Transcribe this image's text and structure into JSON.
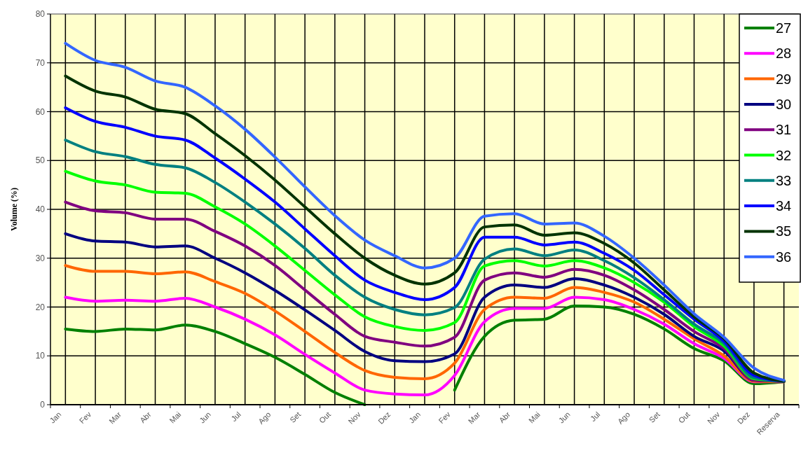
{
  "chart_data": {
    "type": "line",
    "ylabel": "Volume (%)",
    "categories": [
      "Jan",
      "Fev",
      "Mar",
      "Abr",
      "Mai",
      "Jun",
      "Jul",
      "Ago",
      "Set",
      "Out",
      "Nov",
      "Dez",
      "Jan",
      "Fev",
      "Mar",
      "Abr",
      "Mai",
      "Jun",
      "Jul",
      "Ago",
      "Set",
      "Out",
      "Nov",
      "Dez",
      "Reserva"
    ],
    "ylim": [
      0,
      80
    ],
    "yticks": [
      0,
      10,
      20,
      30,
      40,
      50,
      60,
      70,
      80
    ],
    "grid": true,
    "legend": "top right",
    "marker": "none",
    "line_style": "solid",
    "series": [
      {
        "name": "27",
        "color": "#008000",
        "values": [
          15.5,
          15,
          15.5,
          15.3,
          16.3,
          15,
          12.5,
          9.7,
          6.2,
          2.5,
          0,
          null,
          null,
          3,
          14,
          17.3,
          17.5,
          20.2,
          20,
          18.5,
          15.5,
          11.5,
          9,
          4.3,
          4.7
        ]
      },
      {
        "name": "28",
        "color": "#ff00ff",
        "values": [
          22,
          21.2,
          21.4,
          21.2,
          21.8,
          20,
          17.5,
          14.3,
          10.3,
          6.5,
          3,
          2.2,
          2,
          6,
          17,
          19.7,
          19.7,
          22,
          21.5,
          19.5,
          16.5,
          12.5,
          9.5,
          4.7,
          4.7
        ]
      },
      {
        "name": "29",
        "color": "#ff6600",
        "values": [
          28.5,
          27.3,
          27.3,
          26.8,
          27.2,
          25.2,
          22.8,
          19.2,
          15,
          10.7,
          7,
          5.6,
          5.3,
          8.5,
          19.5,
          22,
          21.8,
          24,
          23,
          21,
          17.5,
          13.5,
          10,
          4.8,
          4.7
        ]
      },
      {
        "name": "30",
        "color": "#000080",
        "values": [
          35,
          33.5,
          33.3,
          32.3,
          32.5,
          30,
          27,
          23.4,
          19.4,
          15.2,
          10.9,
          9,
          8.8,
          10.4,
          22,
          24.5,
          24,
          25.8,
          24.5,
          22,
          18.5,
          14,
          11,
          5,
          4.8
        ]
      },
      {
        "name": "31",
        "color": "#800080",
        "values": [
          41.5,
          39.7,
          39.3,
          38,
          38,
          35.5,
          32.5,
          28.5,
          23.5,
          18.5,
          14,
          12.8,
          12,
          13.8,
          25.5,
          27,
          26.1,
          27.7,
          26.5,
          23.5,
          19.5,
          15,
          11.5,
          5,
          4.8
        ]
      },
      {
        "name": "32",
        "color": "#00ff00",
        "values": [
          47.8,
          45.8,
          45,
          43.5,
          43.3,
          40.5,
          37,
          32.5,
          27.5,
          22.5,
          18,
          16,
          15.2,
          16.8,
          28.4,
          29.5,
          28.4,
          29.5,
          28,
          25,
          21,
          16,
          12,
          5.3,
          4.8
        ]
      },
      {
        "name": "33",
        "color": "#008080",
        "values": [
          54.2,
          51.8,
          50.8,
          49.2,
          48.5,
          45.5,
          41.5,
          37,
          32,
          26.5,
          22,
          19.5,
          18.4,
          19.9,
          29.8,
          31.9,
          30.5,
          31.7,
          29.5,
          26,
          21.5,
          16.5,
          12.5,
          5.5,
          4.8
        ]
      },
      {
        "name": "34",
        "color": "#0000ff",
        "values": [
          60.8,
          58,
          56.8,
          55,
          54.2,
          50.5,
          46.2,
          41.5,
          36,
          30.5,
          25.5,
          23,
          21.5,
          24,
          34.3,
          34.3,
          32.7,
          33.3,
          31,
          27.5,
          22.5,
          17.5,
          13,
          6,
          4.8
        ]
      },
      {
        "name": "35",
        "color": "#003300",
        "values": [
          67.3,
          64.2,
          63,
          60.5,
          59.6,
          55.5,
          51,
          46,
          40.5,
          35,
          30,
          26.5,
          24.7,
          27,
          36.4,
          36.8,
          34.7,
          35.2,
          33,
          29,
          23.5,
          18,
          13.5,
          6.5,
          4.8
        ]
      },
      {
        "name": "36",
        "color": "#3366ff",
        "values": [
          74,
          70.5,
          69.1,
          66.3,
          65,
          61.2,
          56.4,
          50.7,
          44.6,
          38.7,
          33.7,
          30.5,
          28,
          30,
          38.6,
          39.1,
          37,
          37.2,
          34.5,
          30,
          24.5,
          18.6,
          13.8,
          7.5,
          5
        ]
      }
    ]
  }
}
